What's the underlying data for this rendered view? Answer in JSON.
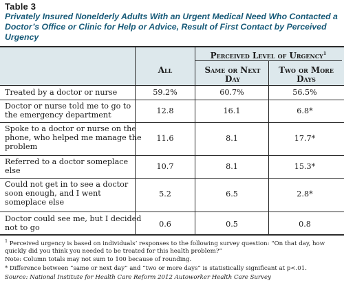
{
  "table_label": "Table 3",
  "title": "Privately Insured Nonelderly Adults With an Urgent Medical Need Who Contacted a Doctor’s Office or Clinic for Help or Advice, Result of First Contact by Perceived Urgency",
  "header": {
    "group": "Perceived Level of Urgency",
    "group_marker": "1",
    "all": "All",
    "same_next_day": "Same or Next Day",
    "two_or_more_days": "Two or More Days"
  },
  "rows": [
    {
      "label": "Treated by a doctor or nurse",
      "all": "59.2%",
      "same": "60.7%",
      "two": "56.5%"
    },
    {
      "label": "Doctor or nurse told me to go to the emergency department",
      "all": "12.8",
      "same": "16.1",
      "two": "6.8*"
    },
    {
      "label": "Spoke to a doctor or nurse on the phone, who helped me manage the problem",
      "all": "11.6",
      "same": "8.1",
      "two": "17.7*"
    },
    {
      "label": "Referred to a doctor someplace else",
      "all": "10.7",
      "same": "8.1",
      "two": "15.3*"
    },
    {
      "label": "Could not get in to see a doctor soon enough, and I went someplace else",
      "all": "5.2",
      "same": "6.5",
      "two": "2.8*"
    },
    {
      "label": "Doctor could see me, but I decided not to go",
      "all": "0.6",
      "same": "0.5",
      "two": "0.8"
    }
  ],
  "footnotes": {
    "note1_marker": "1",
    "note1": "Perceived urgency is based on individuals’ responses to the following survey question: “On that day, how quickly did you think you needed to be treated for this health problem?”",
    "note2": "Note: Column totals may not sum to 100 because of rounding.",
    "note3": "* Difference between “same or next day” and “two or more days” is statistically significant at p<.01.",
    "source": "Source: National Institute for Health Care Reform 2012 Autoworker Health Care Survey"
  },
  "colors": {
    "title": "#175a78",
    "band": "#dde8ec"
  }
}
